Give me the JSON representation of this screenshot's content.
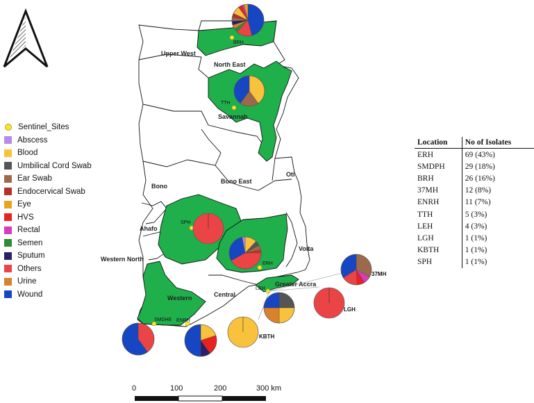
{
  "legend": {
    "items": [
      {
        "label": "Sentinel_Sites",
        "color": "#f5e53b",
        "kind": "dot"
      },
      {
        "label": "Abscess",
        "color": "#b98ae8"
      },
      {
        "label": "Blood",
        "color": "#f9c23c"
      },
      {
        "label": "Umbilical Cord Swab",
        "color": "#555555"
      },
      {
        "label": "Ear Swab",
        "color": "#9c6a4b"
      },
      {
        "label": "Endocervical Swab",
        "color": "#b7312c"
      },
      {
        "label": "Eye",
        "color": "#e8a41c"
      },
      {
        "label": "HVS",
        "color": "#e8231f"
      },
      {
        "label": "Rectal",
        "color": "#d63cc0"
      },
      {
        "label": "Semen",
        "color": "#2e8a3a"
      },
      {
        "label": "Sputum",
        "color": "#2b1e6b"
      },
      {
        "label": "Others",
        "color": "#eb4447"
      },
      {
        "label": "Urine",
        "color": "#d9822b"
      },
      {
        "label": "Wound",
        "color": "#1746c2"
      }
    ]
  },
  "table": {
    "headers": [
      "Location",
      "No of Isolates"
    ],
    "rows": [
      [
        "ERH",
        "69 (43%)"
      ],
      [
        "SMDPH",
        "29 (18%)"
      ],
      [
        "BRH",
        "26 (16%)"
      ],
      [
        "37MH",
        "12 (8%)"
      ],
      [
        "ENRH",
        "11 (7%)"
      ],
      [
        "TTH",
        "5 (3%)"
      ],
      [
        "LEH",
        "4 (3%)"
      ],
      [
        "LGH",
        "1 (1%)"
      ],
      [
        "KBTH",
        "1 (1%)"
      ],
      [
        "SPH",
        "1 (1%)"
      ]
    ]
  },
  "regions": [
    "Upper West",
    "North East",
    "Savannah",
    "Bono",
    "Bono East",
    "Oti",
    "Ahafo",
    "Western North",
    "Volta",
    "Central",
    "Western",
    "Greater Accra"
  ],
  "sites": [
    "BRH",
    "TTH",
    "SPH",
    "ERH",
    "LEH",
    "SMDHE",
    "ENRH"
  ],
  "pies": [
    {
      "id": "BRH",
      "label": "",
      "slices": [
        [
          "Wound",
          0.46
        ],
        [
          "Others",
          0.16
        ],
        [
          "Semen",
          0.04
        ],
        [
          "Urine",
          0.04
        ],
        [
          "Sputum",
          0.04
        ],
        [
          "Ear Swab",
          0.04
        ],
        [
          "Endocervical Swab",
          0.04
        ],
        [
          "Blood",
          0.08
        ],
        [
          "HVS",
          0.04
        ],
        [
          "Rectal",
          0.02
        ],
        [
          "Eye",
          0.04
        ]
      ]
    },
    {
      "id": "TTH",
      "label": "",
      "slices": [
        [
          "Blood",
          0.4
        ],
        [
          "Ear Swab",
          0.2
        ],
        [
          "Wound",
          0.4
        ]
      ]
    },
    {
      "id": "SPH",
      "label": "",
      "slices": [
        [
          "Others",
          1.0
        ]
      ]
    },
    {
      "id": "ERH",
      "label": "",
      "slices": [
        [
          "Blood",
          0.12
        ],
        [
          "Umbilical Cord Swab",
          0.05
        ],
        [
          "Ear Swab",
          0.05
        ],
        [
          "HVS",
          0.03
        ],
        [
          "Others",
          0.42
        ],
        [
          "Wound",
          0.3
        ],
        [
          "Abscess",
          0.03
        ]
      ]
    },
    {
      "id": "37MH",
      "label": "37MH",
      "slices": [
        [
          "Ear Swab",
          0.33
        ],
        [
          "Rectal",
          0.08
        ],
        [
          "HVS",
          0.08
        ],
        [
          "Others",
          0.17
        ],
        [
          "Wound",
          0.34
        ]
      ]
    },
    {
      "id": "LEH",
      "label": "",
      "slices": [
        [
          "Umbilical Cord Swab",
          0.25
        ],
        [
          "Blood",
          0.25
        ],
        [
          "Urine",
          0.25
        ],
        [
          "Wound",
          0.25
        ]
      ]
    },
    {
      "id": "LGH",
      "label": "LGH",
      "slices": [
        [
          "Others",
          1.0
        ]
      ]
    },
    {
      "id": "KBTH",
      "label": "KBTH",
      "slices": [
        [
          "Blood",
          1.0
        ]
      ]
    },
    {
      "id": "SMDPH",
      "label": "",
      "slices": [
        [
          "Others",
          0.4
        ],
        [
          "Wound",
          0.6
        ]
      ]
    },
    {
      "id": "ENRH",
      "label": "",
      "slices": [
        [
          "Blood",
          0.2
        ],
        [
          "HVS",
          0.2
        ],
        [
          "Sputum",
          0.1
        ],
        [
          "Wound",
          0.5
        ]
      ]
    }
  ],
  "scale": {
    "labels": [
      "0",
      "100",
      "200",
      "300 km"
    ]
  }
}
